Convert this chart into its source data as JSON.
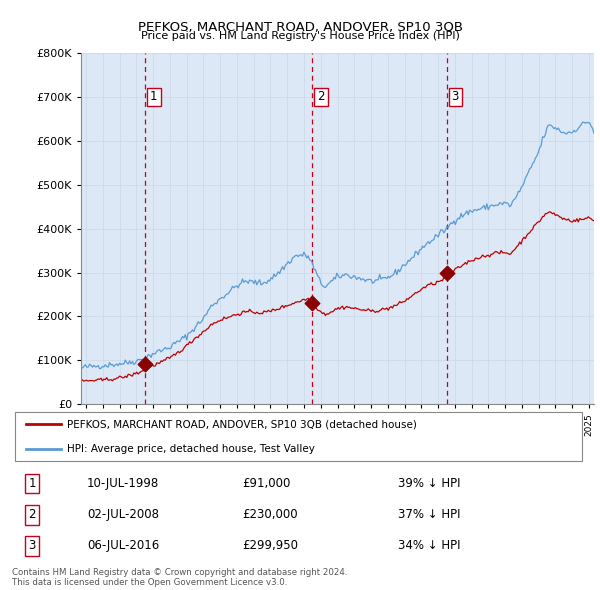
{
  "title": "PEFKOS, MARCHANT ROAD, ANDOVER, SP10 3QB",
  "subtitle": "Price paid vs. HM Land Registry's House Price Index (HPI)",
  "legend_line1": "PEFKOS, MARCHANT ROAD, ANDOVER, SP10 3QB (detached house)",
  "legend_line2": "HPI: Average price, detached house, Test Valley",
  "sale_labels": [
    "1",
    "2",
    "3"
  ],
  "sale_dates_label": [
    "10-JUL-1998",
    "02-JUL-2008",
    "06-JUL-2016"
  ],
  "sale_prices_label": [
    "£91,000",
    "£230,000",
    "£299,950"
  ],
  "sale_pct_label": [
    "39% ↓ HPI",
    "37% ↓ HPI",
    "34% ↓ HPI"
  ],
  "sale_years": [
    1998.52,
    2008.5,
    2016.51
  ],
  "sale_prices": [
    91000,
    230000,
    299950
  ],
  "footer1": "Contains HM Land Registry data © Crown copyright and database right 2024.",
  "footer2": "This data is licensed under the Open Government Licence v3.0.",
  "hpi_color": "#5b9bd5",
  "price_color": "#c00000",
  "vline_color": "#c8001a",
  "sale_marker_color": "#8b0000",
  "grid_color": "#c8d8e8",
  "plot_bg_color": "#dce8f5",
  "bg_color": "#ffffff",
  "ylim": [
    0,
    800000
  ],
  "xlim_start": 1994.7,
  "xlim_end": 2025.3,
  "hpi_key_points": [
    [
      1994.7,
      82000
    ],
    [
      1995.0,
      85000
    ],
    [
      1996.0,
      88000
    ],
    [
      1997.0,
      92000
    ],
    [
      1998.0,
      98000
    ],
    [
      1998.5,
      105000
    ],
    [
      1999.0,
      115000
    ],
    [
      2000.0,
      130000
    ],
    [
      2001.0,
      155000
    ],
    [
      2002.0,
      195000
    ],
    [
      2002.5,
      225000
    ],
    [
      2003.0,
      240000
    ],
    [
      2003.5,
      255000
    ],
    [
      2004.0,
      270000
    ],
    [
      2004.5,
      280000
    ],
    [
      2005.0,
      278000
    ],
    [
      2005.5,
      275000
    ],
    [
      2006.0,
      285000
    ],
    [
      2006.5,
      300000
    ],
    [
      2007.0,
      320000
    ],
    [
      2007.5,
      338000
    ],
    [
      2008.0,
      340000
    ],
    [
      2008.3,
      335000
    ],
    [
      2008.6,
      310000
    ],
    [
      2009.0,
      275000
    ],
    [
      2009.3,
      268000
    ],
    [
      2009.6,
      278000
    ],
    [
      2010.0,
      290000
    ],
    [
      2010.5,
      295000
    ],
    [
      2011.0,
      290000
    ],
    [
      2011.5,
      285000
    ],
    [
      2012.0,
      280000
    ],
    [
      2012.5,
      282000
    ],
    [
      2013.0,
      288000
    ],
    [
      2013.5,
      300000
    ],
    [
      2014.0,
      318000
    ],
    [
      2014.5,
      335000
    ],
    [
      2015.0,
      355000
    ],
    [
      2015.5,
      370000
    ],
    [
      2016.0,
      385000
    ],
    [
      2016.5,
      400000
    ],
    [
      2017.0,
      420000
    ],
    [
      2017.5,
      432000
    ],
    [
      2018.0,
      440000
    ],
    [
      2018.5,
      445000
    ],
    [
      2019.0,
      450000
    ],
    [
      2019.5,
      455000
    ],
    [
      2020.0,
      458000
    ],
    [
      2020.3,
      452000
    ],
    [
      2020.6,
      468000
    ],
    [
      2021.0,
      495000
    ],
    [
      2021.5,
      535000
    ],
    [
      2022.0,
      575000
    ],
    [
      2022.3,
      610000
    ],
    [
      2022.6,
      635000
    ],
    [
      2023.0,
      630000
    ],
    [
      2023.5,
      618000
    ],
    [
      2024.0,
      620000
    ],
    [
      2024.5,
      635000
    ],
    [
      2025.0,
      645000
    ],
    [
      2025.3,
      620000
    ]
  ],
  "price_key_points": [
    [
      1994.7,
      52000
    ],
    [
      1995.0,
      53000
    ],
    [
      1995.5,
      54000
    ],
    [
      1996.0,
      55000
    ],
    [
      1996.5,
      57000
    ],
    [
      1997.0,
      60000
    ],
    [
      1997.5,
      64000
    ],
    [
      1998.0,
      70000
    ],
    [
      1998.5,
      78000
    ],
    [
      1999.0,
      88000
    ],
    [
      1999.5,
      96000
    ],
    [
      2000.0,
      105000
    ],
    [
      2000.5,
      118000
    ],
    [
      2001.0,
      133000
    ],
    [
      2001.5,
      150000
    ],
    [
      2002.0,
      165000
    ],
    [
      2002.5,
      182000
    ],
    [
      2003.0,
      192000
    ],
    [
      2003.5,
      198000
    ],
    [
      2004.0,
      205000
    ],
    [
      2004.5,
      210000
    ],
    [
      2005.0,
      210000
    ],
    [
      2005.5,
      208000
    ],
    [
      2006.0,
      212000
    ],
    [
      2006.5,
      218000
    ],
    [
      2007.0,
      225000
    ],
    [
      2007.5,
      232000
    ],
    [
      2008.0,
      238000
    ],
    [
      2008.3,
      240000
    ],
    [
      2008.5,
      232000
    ],
    [
      2009.0,
      210000
    ],
    [
      2009.3,
      205000
    ],
    [
      2009.6,
      210000
    ],
    [
      2010.0,
      218000
    ],
    [
      2010.5,
      222000
    ],
    [
      2011.0,
      218000
    ],
    [
      2011.5,
      215000
    ],
    [
      2012.0,
      212000
    ],
    [
      2012.5,
      214000
    ],
    [
      2013.0,
      218000
    ],
    [
      2013.5,
      225000
    ],
    [
      2014.0,
      235000
    ],
    [
      2014.5,
      248000
    ],
    [
      2015.0,
      262000
    ],
    [
      2015.5,
      272000
    ],
    [
      2016.0,
      278000
    ],
    [
      2016.5,
      288000
    ],
    [
      2017.0,
      305000
    ],
    [
      2017.5,
      318000
    ],
    [
      2018.0,
      328000
    ],
    [
      2018.5,
      335000
    ],
    [
      2019.0,
      340000
    ],
    [
      2019.5,
      345000
    ],
    [
      2020.0,
      345000
    ],
    [
      2020.3,
      342000
    ],
    [
      2020.6,
      355000
    ],
    [
      2021.0,
      372000
    ],
    [
      2021.5,
      395000
    ],
    [
      2022.0,
      415000
    ],
    [
      2022.3,
      430000
    ],
    [
      2022.6,
      438000
    ],
    [
      2023.0,
      432000
    ],
    [
      2023.5,
      422000
    ],
    [
      2024.0,
      418000
    ],
    [
      2024.5,
      420000
    ],
    [
      2025.0,
      425000
    ],
    [
      2025.3,
      418000
    ]
  ]
}
